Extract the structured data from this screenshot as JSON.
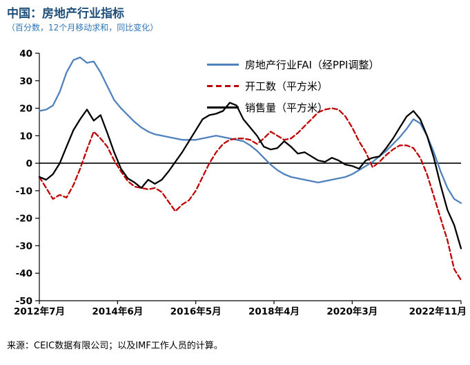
{
  "header": {
    "title": "中国：房地产行业指标",
    "subtitle": "（百分数，12个月移动求和，同比变化）",
    "title_color": "#1F4E79",
    "subtitle_color": "#2E75B6"
  },
  "source": "来源：CEIC数据有限公司；以及IMF工作人员的计算。",
  "chart_data": {
    "type": "line",
    "title": "中国：房地产行业指标",
    "subtitle": "（百分数，12个月移动求和，同比变化）",
    "x_unit": "months since 2012-07, sampled every 2 months",
    "x": [
      0,
      2,
      4,
      6,
      8,
      10,
      12,
      14,
      16,
      18,
      20,
      22,
      24,
      26,
      28,
      30,
      32,
      34,
      36,
      38,
      40,
      42,
      44,
      46,
      48,
      50,
      52,
      54,
      56,
      58,
      60,
      62,
      64,
      66,
      68,
      70,
      72,
      74,
      76,
      78,
      80,
      82,
      84,
      86,
      88,
      90,
      92,
      94,
      96,
      98,
      100,
      102,
      104,
      106,
      108,
      110,
      112,
      114,
      116,
      118,
      120,
      122,
      124
    ],
    "xticks": [
      {
        "m": 0,
        "label": "2012年7月"
      },
      {
        "m": 23,
        "label": "2014年6月"
      },
      {
        "m": 46,
        "label": "2016年5月"
      },
      {
        "m": 69,
        "label": "2018年4月"
      },
      {
        "m": 92,
        "label": "2020年3月"
      },
      {
        "m": 124,
        "label": "2022年11月"
      }
    ],
    "ylim": [
      -50,
      40
    ],
    "yticks": [
      40,
      30,
      20,
      10,
      0,
      -10,
      -20,
      -30,
      -40,
      -50
    ],
    "grid": false,
    "zero_line": true,
    "legend_position": "top-inside",
    "series": [
      {
        "name": "房地产行业FAI（经PPI调整）",
        "color": "#4F81BD",
        "style": "solid",
        "values": [
          19,
          19.5,
          21,
          26,
          33,
          37.5,
          38.5,
          36.5,
          37,
          33,
          28,
          23,
          20,
          17.5,
          15,
          13,
          11.5,
          10.5,
          10,
          9.5,
          9,
          8.5,
          8.5,
          8.5,
          9,
          9.5,
          10,
          9.5,
          9,
          8.5,
          8,
          6.5,
          4.5,
          2,
          -0.5,
          -2.5,
          -4,
          -5,
          -5.5,
          -6,
          -6.5,
          -7,
          -6.5,
          -6,
          -5.5,
          -5,
          -4,
          -2.5,
          -1,
          0.5,
          2.5,
          4.5,
          7,
          9.5,
          12.5,
          16,
          14.5,
          10,
          4,
          -3,
          -9,
          -13,
          -14.5
        ]
      },
      {
        "name": "开工数（平方米）",
        "color": "#C00000",
        "style": "dashed",
        "values": [
          -5,
          -9,
          -13,
          -11.5,
          -12.5,
          -8,
          -2,
          5,
          11.5,
          9,
          6,
          1,
          -3,
          -6.5,
          -8.5,
          -9,
          -9.5,
          -9,
          -10.5,
          -14,
          -17.5,
          -15,
          -13.5,
          -10,
          -5,
          0,
          4,
          7,
          8.5,
          9,
          9,
          8.5,
          7,
          9,
          11.5,
          10,
          8.5,
          9,
          11,
          13.5,
          16,
          18.5,
          19.5,
          20,
          19.5,
          17,
          13,
          8,
          4,
          -1.5,
          0.5,
          3,
          5,
          6.5,
          6.5,
          5.5,
          2,
          -4,
          -12,
          -20,
          -28,
          -38.5,
          -42.5
        ]
      },
      {
        "name": "销售量（平方米）",
        "color": "#000000",
        "style": "solid",
        "values": [
          -5,
          -6,
          -4,
          0,
          6,
          12,
          16,
          19.5,
          15.5,
          17.5,
          11,
          4,
          -2,
          -5.5,
          -7,
          -9,
          -6,
          -7.5,
          -6,
          -3,
          0.5,
          4,
          8,
          12,
          16,
          17.5,
          18,
          19,
          22,
          21,
          16,
          13,
          10,
          6,
          5,
          5.5,
          8,
          6,
          3.5,
          4,
          2.5,
          1,
          0.5,
          2,
          1,
          -0.5,
          -1,
          -2,
          1,
          2,
          2.5,
          5.5,
          9,
          13,
          17,
          19,
          16,
          10,
          2,
          -8,
          -17,
          -22.5,
          -31
        ]
      }
    ]
  }
}
